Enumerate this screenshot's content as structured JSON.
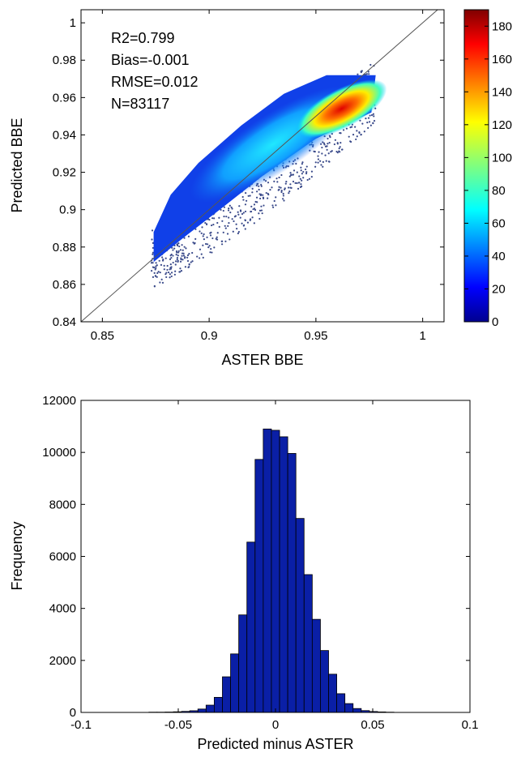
{
  "chart_data": [
    {
      "type": "scatter",
      "title": "",
      "xlabel": "ASTER BBE",
      "ylabel": "Predicted BBE",
      "xlim": [
        0.84,
        1.01
      ],
      "ylim": [
        0.84,
        1.007
      ],
      "x_ticks": [
        0.85,
        0.9,
        0.95,
        1
      ],
      "x_tick_labels": [
        "0.85",
        "0.9",
        "0.95",
        "1"
      ],
      "y_ticks": [
        0.84,
        0.86,
        0.88,
        0.9,
        0.92,
        0.94,
        0.96,
        0.98,
        1
      ],
      "y_tick_labels": [
        "0.84",
        "0.86",
        "0.88",
        "0.9",
        "0.92",
        "0.94",
        "0.96",
        "0.98",
        "1"
      ],
      "annotations": [
        "R2=0.799",
        "Bias=-0.001",
        "RMSE=0.012",
        "N=83117"
      ],
      "one_to_one_line": true,
      "density_colorbar": {
        "range": [
          0,
          190
        ],
        "ticks": [
          0,
          20,
          40,
          60,
          80,
          100,
          120,
          140,
          160,
          180
        ],
        "tick_labels": [
          "0",
          "20",
          "40",
          "60",
          "80",
          "100",
          "120",
          "140",
          "160",
          "180"
        ],
        "colormap": "jet"
      },
      "density_cloud": {
        "x_range": [
          0.873,
          0.978
        ],
        "y_range": [
          0.869,
          0.979
        ],
        "peak": [
          0.962,
          0.954
        ],
        "peak_count": 190
      },
      "grid": false
    },
    {
      "type": "bar",
      "title": "",
      "xlabel": "Predicted minus ASTER",
      "ylabel": "Frequency",
      "xlim": [
        -0.1,
        0.1
      ],
      "ylim": [
        0,
        12000
      ],
      "x_ticks": [
        -0.1,
        -0.05,
        0,
        0.05,
        0.1
      ],
      "x_tick_labels": [
        "-0.1",
        "-0.05",
        "0",
        "0.05",
        "0.1"
      ],
      "y_ticks": [
        0,
        2000,
        4000,
        6000,
        8000,
        10000,
        12000
      ],
      "y_tick_labels": [
        "0",
        "2000",
        "4000",
        "6000",
        "8000",
        "10000",
        "12000"
      ],
      "bin_width": 0.0042,
      "bin_centers": [
        -0.063,
        -0.0588,
        -0.0546,
        -0.0504,
        -0.0462,
        -0.042,
        -0.0378,
        -0.0336,
        -0.0294,
        -0.0252,
        -0.021,
        -0.0168,
        -0.0126,
        -0.0084,
        -0.0042,
        0,
        0.0042,
        0.0084,
        0.0126,
        0.0168,
        0.021,
        0.0252,
        0.0294,
        0.0336,
        0.0378,
        0.042,
        0.0462,
        0.0504,
        0.0546,
        0.0588
      ],
      "values": [
        10,
        10,
        15,
        25,
        40,
        65,
        130,
        280,
        580,
        1370,
        2250,
        3750,
        6550,
        9730,
        10900,
        10850,
        10600,
        9960,
        7460,
        5300,
        3580,
        2380,
        1470,
        720,
        340,
        150,
        70,
        35,
        20,
        10
      ],
      "color": "#0a1fa6",
      "grid": false
    }
  ]
}
